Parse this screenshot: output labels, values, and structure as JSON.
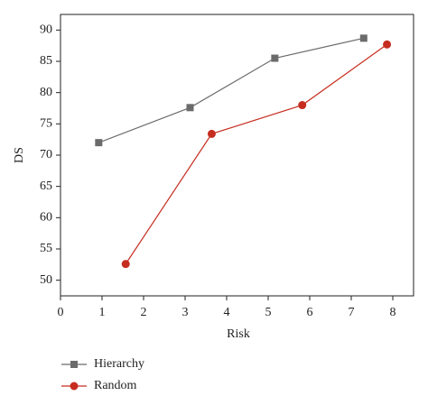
{
  "chart_data": {
    "type": "line",
    "x_label": "Risk",
    "y_label": "DS",
    "xlim": [
      0,
      8.5
    ],
    "xticks": [
      0,
      1,
      2,
      3,
      4,
      5,
      6,
      7,
      8
    ],
    "ylim": [
      47.5,
      92.5
    ],
    "yticks": [
      50,
      55,
      60,
      65,
      70,
      75,
      80,
      85,
      90
    ],
    "legend": "bottom-left",
    "series": [
      {
        "name": "Hierarchy",
        "color": "#6b6b6b",
        "marker": "square",
        "x": [
          0.92,
          3.12,
          5.16,
          7.3
        ],
        "values": [
          72,
          77.6,
          85.5,
          88.7
        ]
      },
      {
        "name": "Random",
        "color": "#c62d1f",
        "marker": "circle",
        "x": [
          1.57,
          3.64,
          5.82,
          7.86
        ],
        "values": [
          52.6,
          73.4,
          78.0,
          87.7
        ]
      }
    ]
  }
}
